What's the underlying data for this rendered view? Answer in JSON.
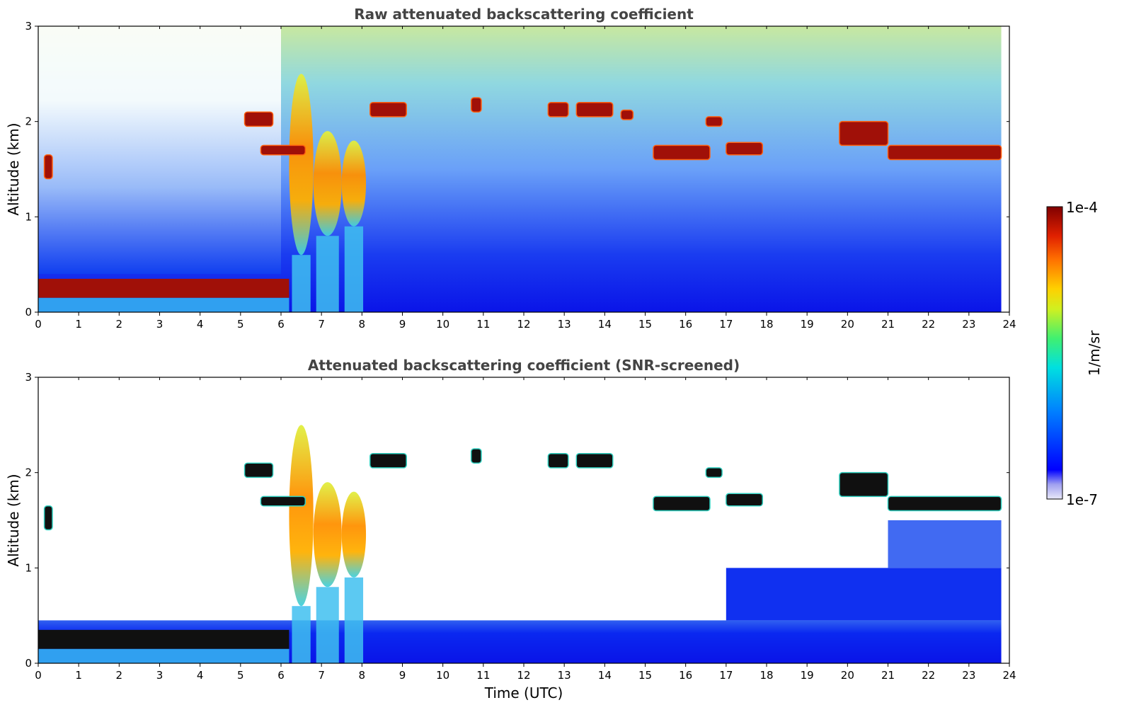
{
  "chart_data": [
    {
      "type": "heatmap",
      "title": "Raw attenuated backscattering coefficient",
      "ylabel": "Altitude (km)",
      "xlabel": "",
      "xlim": [
        0,
        24
      ],
      "ylim": [
        0,
        3
      ],
      "xticks": [
        "0",
        "1",
        "2",
        "3",
        "4",
        "5",
        "6",
        "7",
        "8",
        "9",
        "10",
        "11",
        "12",
        "13",
        "14",
        "15",
        "16",
        "17",
        "18",
        "19",
        "20",
        "21",
        "22",
        "23",
        "24"
      ],
      "yticks": [
        "0",
        "1",
        "2",
        "3"
      ],
      "data_end_hour": 23.8,
      "boundary_layer": {
        "x": [
          0,
          6.2
        ],
        "y": [
          0.15,
          0.35
        ]
      },
      "cloud_layers": [
        {
          "x": [
            0.15,
            0.35
          ],
          "y": [
            1.4,
            1.65
          ]
        },
        {
          "x": [
            5.1,
            5.8
          ],
          "y": [
            1.95,
            2.1
          ]
        },
        {
          "x": [
            5.5,
            6.6
          ],
          "y": [
            1.65,
            1.75
          ]
        },
        {
          "x": [
            8.2,
            9.1
          ],
          "y": [
            2.05,
            2.2
          ]
        },
        {
          "x": [
            10.7,
            10.95
          ],
          "y": [
            2.1,
            2.25
          ]
        },
        {
          "x": [
            12.6,
            13.1
          ],
          "y": [
            2.05,
            2.2
          ]
        },
        {
          "x": [
            13.3,
            14.2
          ],
          "y": [
            2.05,
            2.2
          ]
        },
        {
          "x": [
            14.4,
            14.7
          ],
          "y": [
            2.02,
            2.12
          ]
        },
        {
          "x": [
            16.5,
            16.9
          ],
          "y": [
            1.95,
            2.05
          ]
        },
        {
          "x": [
            15.2,
            16.6
          ],
          "y": [
            1.6,
            1.75
          ]
        },
        {
          "x": [
            17.0,
            17.9
          ],
          "y": [
            1.65,
            1.78
          ]
        },
        {
          "x": [
            19.8,
            21.0
          ],
          "y": [
            1.75,
            2.0
          ]
        },
        {
          "x": [
            21.0,
            23.8
          ],
          "y": [
            1.6,
            1.75
          ]
        }
      ],
      "aerosol_plumes": [
        {
          "x": [
            6.2,
            6.8
          ],
          "y": [
            0.6,
            2.5
          ]
        },
        {
          "x": [
            6.8,
            7.5
          ],
          "y": [
            0.8,
            1.9
          ]
        },
        {
          "x": [
            7.5,
            8.1
          ],
          "y": [
            0.9,
            1.8
          ]
        }
      ]
    },
    {
      "type": "heatmap",
      "title": "Attenuated backscattering coefficient (SNR-screened)",
      "ylabel": "Altitude (km)",
      "xlabel": "Time (UTC)",
      "xlim": [
        0,
        24
      ],
      "ylim": [
        0,
        3
      ],
      "xticks": [
        "0",
        "1",
        "2",
        "3",
        "4",
        "5",
        "6",
        "7",
        "8",
        "9",
        "10",
        "11",
        "12",
        "13",
        "14",
        "15",
        "16",
        "17",
        "18",
        "19",
        "20",
        "21",
        "22",
        "23",
        "24"
      ],
      "yticks": [
        "0",
        "1",
        "2",
        "3"
      ],
      "data_end_hour": 23.8,
      "boundary_layer": {
        "x": [
          0,
          6.2
        ],
        "y": [
          0.15,
          0.35
        ]
      },
      "cloud_layers": [
        {
          "x": [
            0.15,
            0.35
          ],
          "y": [
            1.4,
            1.65
          ]
        },
        {
          "x": [
            5.1,
            5.8
          ],
          "y": [
            1.95,
            2.1
          ]
        },
        {
          "x": [
            5.5,
            6.6
          ],
          "y": [
            1.65,
            1.75
          ]
        },
        {
          "x": [
            8.2,
            9.1
          ],
          "y": [
            2.05,
            2.2
          ]
        },
        {
          "x": [
            10.7,
            10.95
          ],
          "y": [
            2.1,
            2.25
          ]
        },
        {
          "x": [
            12.6,
            13.1
          ],
          "y": [
            2.05,
            2.2
          ]
        },
        {
          "x": [
            13.3,
            14.2
          ],
          "y": [
            2.05,
            2.2
          ]
        },
        {
          "x": [
            16.5,
            16.9
          ],
          "y": [
            1.95,
            2.05
          ]
        },
        {
          "x": [
            15.2,
            16.6
          ],
          "y": [
            1.6,
            1.75
          ]
        },
        {
          "x": [
            17.0,
            17.9
          ],
          "y": [
            1.65,
            1.78
          ]
        },
        {
          "x": [
            19.8,
            21.0
          ],
          "y": [
            1.75,
            2.0
          ]
        },
        {
          "x": [
            21.0,
            23.8
          ],
          "y": [
            1.6,
            1.75
          ]
        }
      ],
      "aerosol_plumes": [
        {
          "x": [
            6.2,
            6.8
          ],
          "y": [
            0.6,
            2.5
          ]
        },
        {
          "x": [
            6.8,
            7.5
          ],
          "y": [
            0.8,
            1.9
          ]
        },
        {
          "x": [
            7.5,
            8.1
          ],
          "y": [
            0.9,
            1.8
          ]
        }
      ]
    }
  ],
  "colorbar": {
    "max_label": "1e-4",
    "min_label": "1e-7",
    "unit_label": "1/m/sr",
    "colors": [
      "#e8e8f8",
      "#0000ff",
      "#0080ff",
      "#00e0e0",
      "#40f070",
      "#d0f020",
      "#ffd000",
      "#ff7000",
      "#e02000",
      "#800000"
    ]
  }
}
